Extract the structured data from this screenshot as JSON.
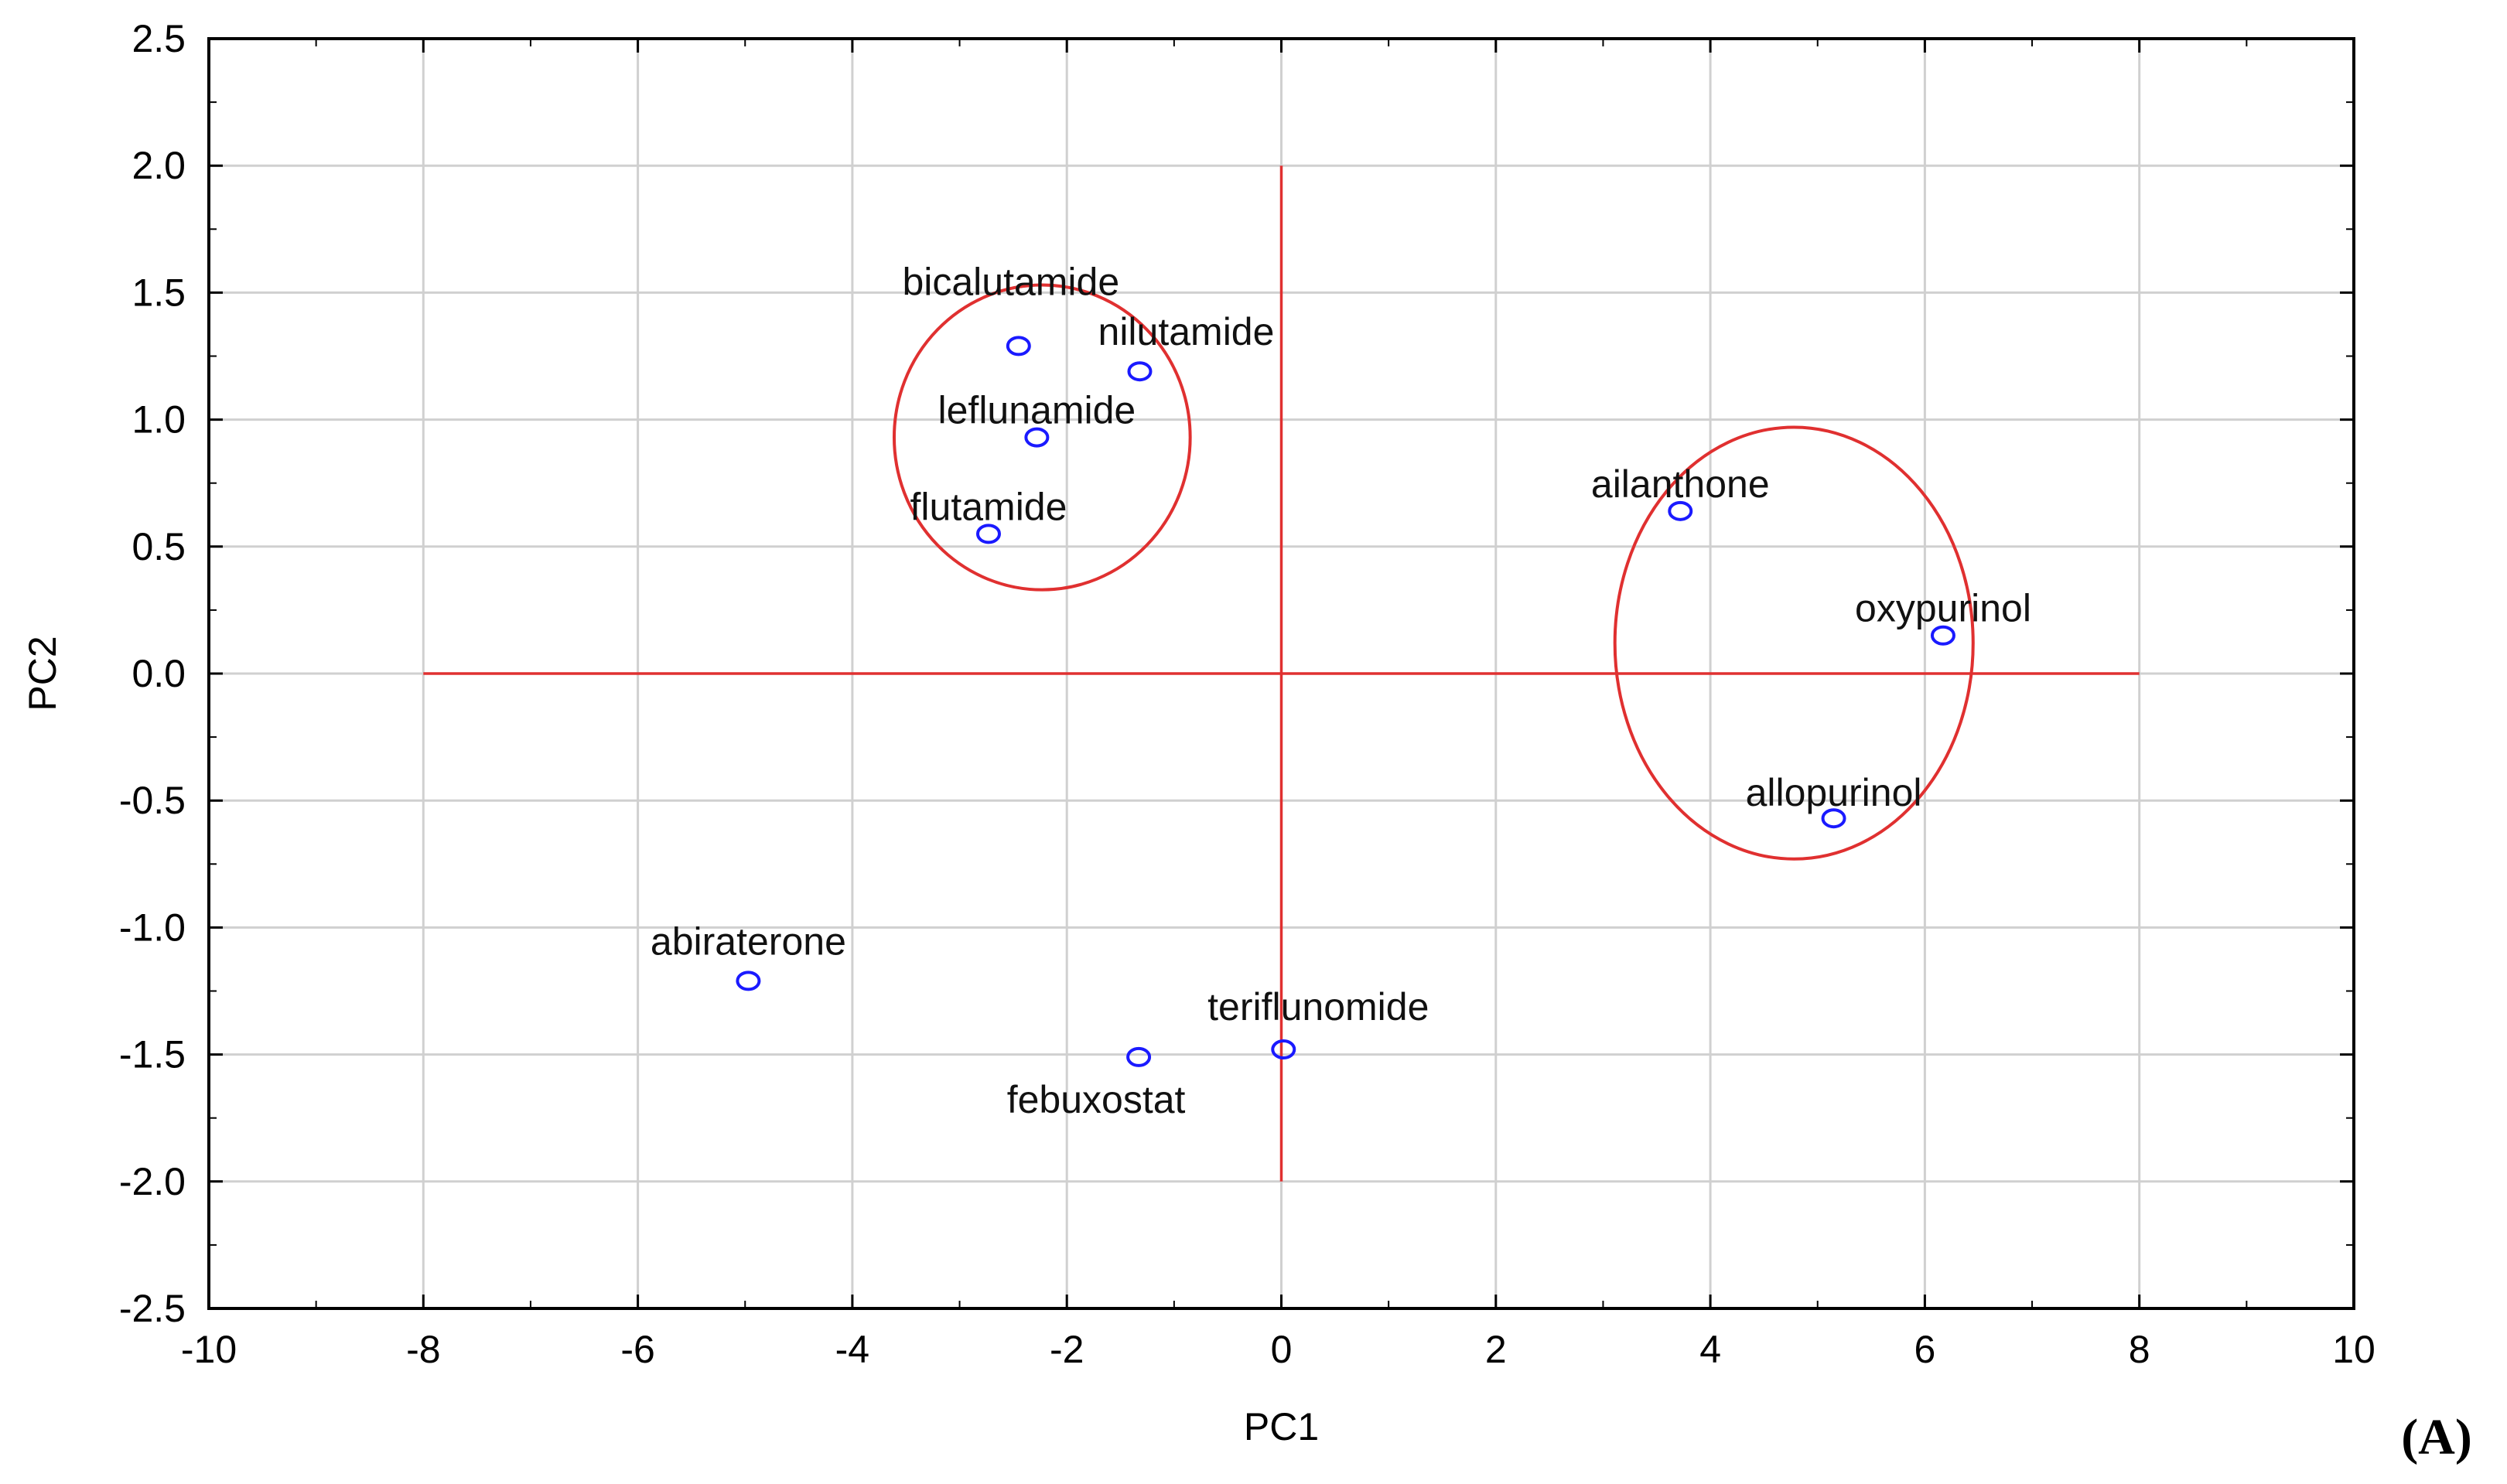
{
  "chart_data": {
    "type": "scatter",
    "xlabel": "PC1",
    "ylabel": "PC2",
    "xlim": [
      -10,
      10
    ],
    "ylim": [
      -2.5,
      2.5
    ],
    "xticks": [
      -10,
      -8,
      -6,
      -4,
      -2,
      0,
      2,
      4,
      6,
      8,
      10
    ],
    "yticks": [
      -2.5,
      -2.0,
      -1.5,
      -1.0,
      -0.5,
      0.0,
      0.5,
      1.0,
      1.5,
      2.0,
      2.5
    ],
    "xtick_labels": [
      "-10",
      "-8",
      "-6",
      "-4",
      "-2",
      "0",
      "2",
      "4",
      "6",
      "8",
      "10"
    ],
    "ytick_labels": [
      "-2.5",
      "-2.0",
      "-1.5",
      "-1.0",
      "-0.5",
      "0.0",
      "0.5",
      "1.0",
      "1.5",
      "2.0",
      "2.5"
    ],
    "grid": true,
    "points": [
      {
        "label": "bicalutamide",
        "x": -2.45,
        "y": 1.29
      },
      {
        "label": "nilutamide",
        "x": -1.32,
        "y": 1.19
      },
      {
        "label": "leflunamide",
        "x": -2.28,
        "y": 0.93
      },
      {
        "label": "flutamide",
        "x": -2.73,
        "y": 0.55
      },
      {
        "label": "ailanthone",
        "x": 3.72,
        "y": 0.64
      },
      {
        "label": "oxypurinol",
        "x": 6.17,
        "y": 0.15
      },
      {
        "label": "allopurinol",
        "x": 5.15,
        "y": -0.57
      },
      {
        "label": "abiraterone",
        "x": -4.97,
        "y": -1.21
      },
      {
        "label": "teriflunomide",
        "x": 0.02,
        "y": -1.48
      },
      {
        "label": "febuxostat",
        "x": -1.33,
        "y": -1.51
      }
    ],
    "reference_lines": [
      {
        "orientation": "horizontal",
        "y": 0,
        "x_from": -8,
        "x_to": 8
      },
      {
        "orientation": "vertical",
        "x": 0,
        "y_from": -2,
        "y_to": 2
      }
    ],
    "cluster_ellipses": [
      {
        "cx": -2.23,
        "cy": 0.93,
        "rx": 1.38,
        "ry": 0.6
      },
      {
        "cx": 4.78,
        "cy": 0.12,
        "rx": 1.67,
        "ry": 0.85
      }
    ],
    "colors": {
      "points": "#1a1aff",
      "reference": "#e03030",
      "grid": "#d0d0d0",
      "frame": "#000000"
    }
  },
  "panel_label": "(A)"
}
